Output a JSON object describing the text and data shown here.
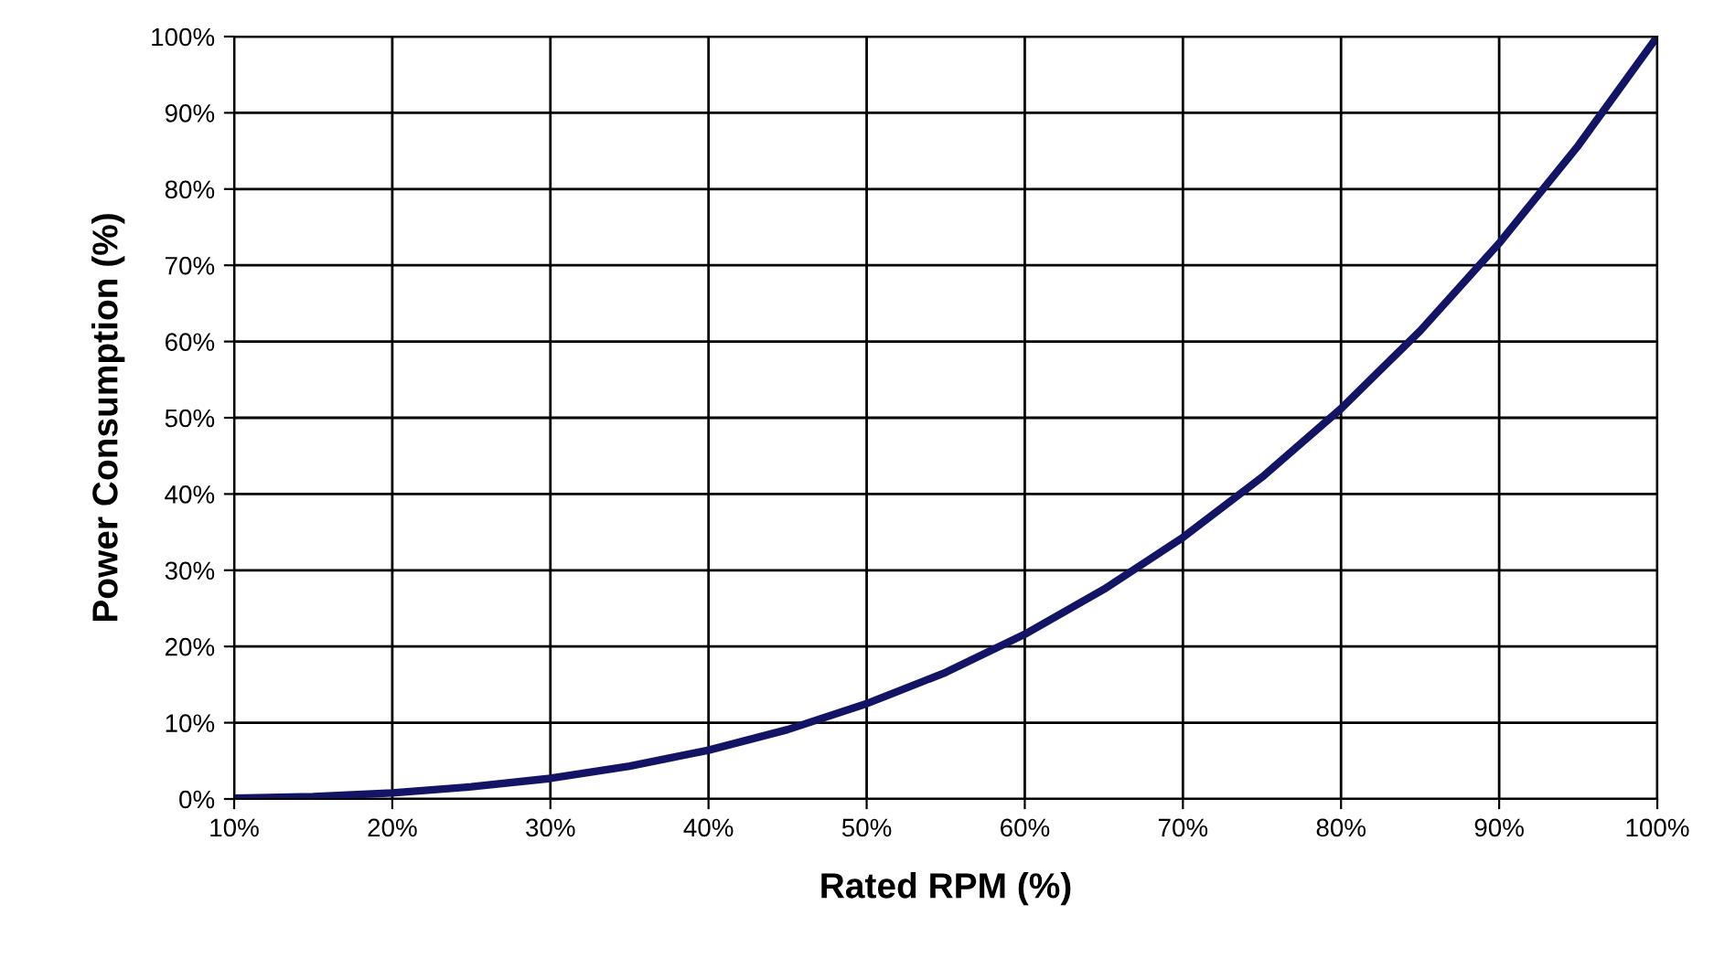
{
  "chart_data": {
    "type": "line",
    "xlabel": "Rated RPM (%)",
    "ylabel": "Power Consumption (%)",
    "x": [
      10,
      15,
      20,
      25,
      30,
      35,
      40,
      45,
      50,
      55,
      60,
      65,
      70,
      75,
      80,
      85,
      90,
      95,
      100
    ],
    "series": [
      {
        "color": "#141466",
        "values": [
          0.1,
          0.3,
          0.8,
          1.6,
          2.7,
          4.3,
          6.4,
          9.1,
          12.5,
          16.6,
          21.6,
          27.5,
          34.3,
          42.2,
          51.2,
          61.4,
          72.9,
          85.7,
          100
        ]
      }
    ],
    "xlim": [
      10,
      100
    ],
    "ylim": [
      0,
      100
    ],
    "xticks": [
      {
        "value": 10,
        "label": "10%"
      },
      {
        "value": 20,
        "label": "20%"
      },
      {
        "value": 30,
        "label": "30%"
      },
      {
        "value": 40,
        "label": "40%"
      },
      {
        "value": 50,
        "label": "50%"
      },
      {
        "value": 60,
        "label": "60%"
      },
      {
        "value": 70,
        "label": "70%"
      },
      {
        "value": 80,
        "label": "80%"
      },
      {
        "value": 90,
        "label": "90%"
      },
      {
        "value": 100,
        "label": "100%"
      }
    ],
    "yticks": [
      {
        "value": 0,
        "label": "0%"
      },
      {
        "value": 10,
        "label": "10%"
      },
      {
        "value": 20,
        "label": "20%"
      },
      {
        "value": 30,
        "label": "30%"
      },
      {
        "value": 40,
        "label": "40%"
      },
      {
        "value": 50,
        "label": "50%"
      },
      {
        "value": 60,
        "label": "60%"
      },
      {
        "value": 70,
        "label": "70%"
      },
      {
        "value": 80,
        "label": "80%"
      },
      {
        "value": 90,
        "label": "90%"
      },
      {
        "value": 100,
        "label": "100%"
      }
    ],
    "grid": true,
    "marker": "none",
    "line_style": "solid"
  }
}
